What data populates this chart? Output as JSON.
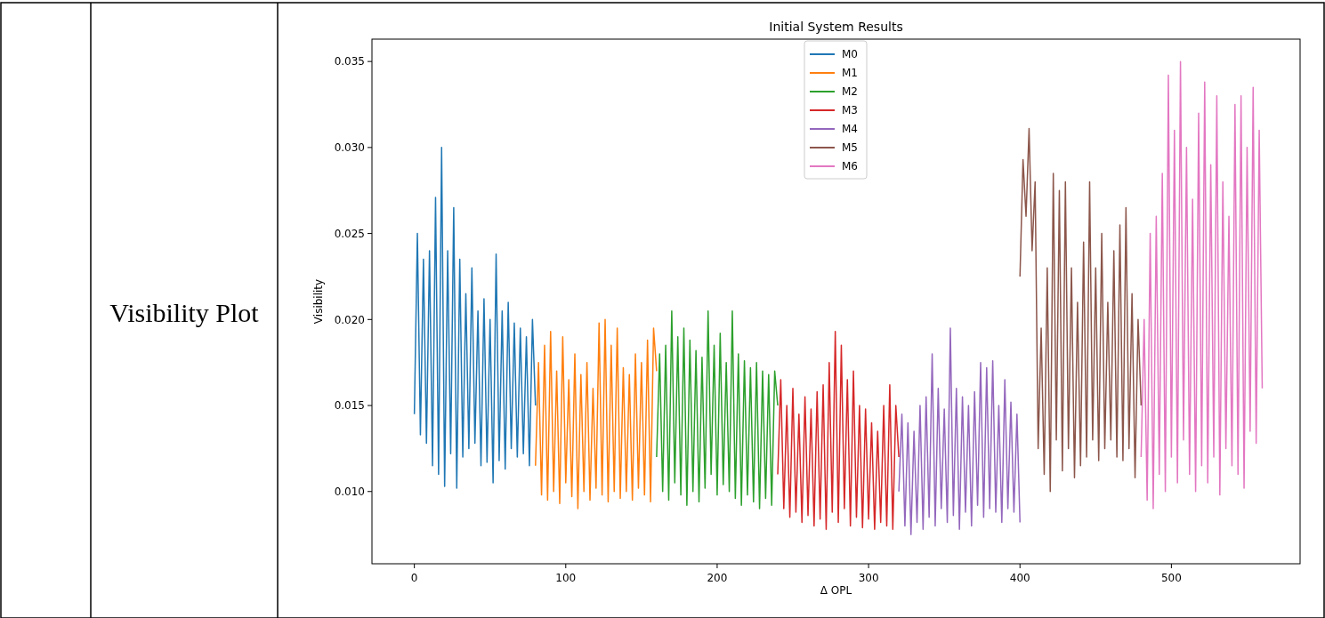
{
  "chart_data": {
    "type": "line",
    "title": "Initial System Results",
    "xlabel": "Δ OPL",
    "ylabel": "Visibility",
    "annotations": [
      "Visibility Plot"
    ],
    "legend": "top",
    "grid": false,
    "line_style": "solid",
    "marker": "none",
    "xlim": [
      -28,
      585
    ],
    "ylim": [
      0.0058,
      0.0363
    ],
    "xticks": [
      0,
      100,
      200,
      300,
      400,
      500
    ],
    "yticks": [
      {
        "value": 0.01,
        "label": "0.010"
      },
      {
        "value": 0.015,
        "label": "0.015"
      },
      {
        "value": 0.02,
        "label": "0.020"
      },
      {
        "value": 0.025,
        "label": "0.025"
      },
      {
        "value": 0.03,
        "label": "0.030"
      },
      {
        "value": 0.035,
        "label": "0.035"
      }
    ],
    "series": [
      {
        "name": "M0",
        "color": "#1f77b4",
        "x": [
          0,
          2,
          4,
          6,
          8,
          10,
          12,
          14,
          16,
          18,
          20,
          22,
          24,
          26,
          28,
          30,
          32,
          34,
          36,
          38,
          40,
          42,
          44,
          46,
          48,
          50,
          52,
          54,
          56,
          58,
          60,
          62,
          64,
          66,
          68,
          70,
          72,
          74,
          76,
          78,
          80
        ],
        "values": [
          0.0145,
          0.025,
          0.0133,
          0.0235,
          0.0128,
          0.024,
          0.0115,
          0.0271,
          0.011,
          0.03,
          0.0103,
          0.024,
          0.0122,
          0.0265,
          0.0102,
          0.0235,
          0.012,
          0.0215,
          0.0125,
          0.023,
          0.0128,
          0.0205,
          0.0115,
          0.0212,
          0.0117,
          0.02,
          0.0105,
          0.0238,
          0.0118,
          0.0205,
          0.0113,
          0.021,
          0.0125,
          0.0198,
          0.012,
          0.0195,
          0.0122,
          0.019,
          0.0115,
          0.02,
          0.015
        ]
      },
      {
        "name": "M1",
        "color": "#ff7f0e",
        "x": [
          80,
          82,
          84,
          86,
          88,
          90,
          92,
          94,
          96,
          98,
          100,
          102,
          104,
          106,
          108,
          110,
          112,
          114,
          116,
          118,
          120,
          122,
          124,
          126,
          128,
          130,
          132,
          134,
          136,
          138,
          140,
          142,
          144,
          146,
          148,
          150,
          152,
          154,
          156,
          158,
          160
        ],
        "values": [
          0.0115,
          0.0175,
          0.0098,
          0.0185,
          0.0095,
          0.0193,
          0.01,
          0.017,
          0.0093,
          0.019,
          0.0105,
          0.0165,
          0.0097,
          0.018,
          0.009,
          0.0168,
          0.01,
          0.0175,
          0.0095,
          0.016,
          0.0102,
          0.0198,
          0.0098,
          0.02,
          0.0094,
          0.0185,
          0.01,
          0.0195,
          0.0096,
          0.0172,
          0.01,
          0.0168,
          0.0095,
          0.018,
          0.0102,
          0.0175,
          0.0098,
          0.0188,
          0.0094,
          0.0195,
          0.017
        ]
      },
      {
        "name": "M2",
        "color": "#2ca02c",
        "x": [
          160,
          162,
          164,
          166,
          168,
          170,
          172,
          174,
          176,
          178,
          180,
          182,
          184,
          186,
          188,
          190,
          192,
          194,
          196,
          198,
          200,
          202,
          204,
          206,
          208,
          210,
          212,
          214,
          216,
          218,
          220,
          222,
          224,
          226,
          228,
          230,
          232,
          234,
          236,
          238,
          240
        ],
        "values": [
          0.012,
          0.018,
          0.01,
          0.0185,
          0.0095,
          0.0205,
          0.0105,
          0.019,
          0.0098,
          0.0195,
          0.0092,
          0.0188,
          0.01,
          0.0182,
          0.0094,
          0.0178,
          0.0102,
          0.0205,
          0.011,
          0.0185,
          0.0098,
          0.0192,
          0.0104,
          0.0175,
          0.01,
          0.0205,
          0.0096,
          0.018,
          0.0092,
          0.0176,
          0.0098,
          0.0172,
          0.0094,
          0.0175,
          0.009,
          0.017,
          0.0096,
          0.0168,
          0.0092,
          0.017,
          0.015
        ]
      },
      {
        "name": "M3",
        "color": "#d62728",
        "x": [
          240,
          242,
          244,
          246,
          248,
          250,
          252,
          254,
          256,
          258,
          260,
          262,
          264,
          266,
          268,
          270,
          272,
          274,
          276,
          278,
          280,
          282,
          284,
          286,
          288,
          290,
          292,
          294,
          296,
          298,
          300,
          302,
          304,
          306,
          308,
          310,
          312,
          314,
          316,
          318,
          320
        ],
        "values": [
          0.011,
          0.0165,
          0.009,
          0.015,
          0.0085,
          0.016,
          0.0088,
          0.0145,
          0.0082,
          0.0155,
          0.0086,
          0.0148,
          0.008,
          0.0158,
          0.0084,
          0.0162,
          0.0078,
          0.0175,
          0.0088,
          0.0193,
          0.0082,
          0.0185,
          0.009,
          0.0165,
          0.008,
          0.017,
          0.0085,
          0.015,
          0.0079,
          0.0148,
          0.0084,
          0.014,
          0.0078,
          0.0135,
          0.0082,
          0.015,
          0.008,
          0.0162,
          0.0078,
          0.015,
          0.012
        ]
      },
      {
        "name": "M4",
        "color": "#9467bd",
        "x": [
          320,
          322,
          324,
          326,
          328,
          330,
          332,
          334,
          336,
          338,
          340,
          342,
          344,
          346,
          348,
          350,
          352,
          354,
          356,
          358,
          360,
          362,
          364,
          366,
          368,
          370,
          372,
          374,
          376,
          378,
          380,
          382,
          384,
          386,
          388,
          390,
          392,
          394,
          396,
          398,
          400
        ],
        "values": [
          0.01,
          0.0145,
          0.008,
          0.014,
          0.0075,
          0.0135,
          0.0082,
          0.015,
          0.0078,
          0.0155,
          0.0085,
          0.018,
          0.008,
          0.016,
          0.009,
          0.0148,
          0.0082,
          0.0195,
          0.0086,
          0.016,
          0.0078,
          0.0155,
          0.0088,
          0.015,
          0.008,
          0.0158,
          0.0092,
          0.0175,
          0.0085,
          0.0172,
          0.009,
          0.0176,
          0.0088,
          0.015,
          0.0082,
          0.0165,
          0.009,
          0.0152,
          0.0088,
          0.0145,
          0.0082
        ]
      },
      {
        "name": "M5",
        "color": "#8c564b",
        "x": [
          400,
          402,
          404,
          406,
          408,
          410,
          412,
          414,
          416,
          418,
          420,
          422,
          424,
          426,
          428,
          430,
          432,
          434,
          436,
          438,
          440,
          442,
          444,
          446,
          448,
          450,
          452,
          454,
          456,
          458,
          460,
          462,
          464,
          466,
          468,
          470,
          472,
          474,
          476,
          478,
          480
        ],
        "values": [
          0.0225,
          0.0293,
          0.026,
          0.0311,
          0.024,
          0.028,
          0.0125,
          0.0195,
          0.011,
          0.023,
          0.01,
          0.0285,
          0.013,
          0.0275,
          0.0112,
          0.028,
          0.0125,
          0.023,
          0.0108,
          0.021,
          0.0115,
          0.0245,
          0.012,
          0.028,
          0.013,
          0.023,
          0.0118,
          0.025,
          0.0125,
          0.021,
          0.013,
          0.024,
          0.012,
          0.0255,
          0.0118,
          0.0265,
          0.0125,
          0.0215,
          0.0108,
          0.02,
          0.015
        ]
      },
      {
        "name": "M6",
        "color": "#e377c2",
        "x": [
          480,
          482,
          484,
          486,
          488,
          490,
          492,
          494,
          496,
          498,
          500,
          502,
          504,
          506,
          508,
          510,
          512,
          514,
          516,
          518,
          520,
          522,
          524,
          526,
          528,
          530,
          532,
          534,
          536,
          538,
          540,
          542,
          544,
          546,
          548,
          550,
          552,
          554,
          556,
          558,
          560
        ],
        "values": [
          0.012,
          0.02,
          0.0095,
          0.025,
          0.009,
          0.026,
          0.011,
          0.0285,
          0.01,
          0.0342,
          0.012,
          0.031,
          0.0105,
          0.035,
          0.013,
          0.03,
          0.011,
          0.027,
          0.01,
          0.032,
          0.0115,
          0.0338,
          0.0105,
          0.029,
          0.012,
          0.033,
          0.0098,
          0.028,
          0.0125,
          0.026,
          0.0115,
          0.0325,
          0.011,
          0.033,
          0.0102,
          0.03,
          0.0135,
          0.0335,
          0.0128,
          0.031,
          0.016
        ]
      }
    ]
  }
}
